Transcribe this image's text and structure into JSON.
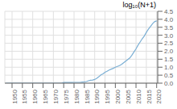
{
  "chart_data": {
    "type": "line",
    "title": "log₁₀(N+1)",
    "x": [
      1947,
      1948,
      1949,
      1950,
      1951,
      1952,
      1953,
      1954,
      1955,
      1956,
      1957,
      1958,
      1959,
      1960,
      1961,
      1962,
      1963,
      1964,
      1965,
      1966,
      1967,
      1968,
      1969,
      1970,
      1971,
      1972,
      1973,
      1974,
      1975,
      1976,
      1977,
      1978,
      1979,
      1980,
      1981,
      1982,
      1983,
      1984,
      1985,
      1986,
      1987,
      1988,
      1989,
      1990,
      1991,
      1992,
      1993,
      1994,
      1995,
      1996,
      1997,
      1998,
      1999,
      2000,
      2001,
      2002,
      2003,
      2004,
      2005,
      2006,
      2007,
      2008,
      2009,
      2010,
      2011,
      2012,
      2013,
      2014,
      2015,
      2016,
      2017,
      2018,
      2019,
      2020
    ],
    "values": [
      0.0,
      0.0,
      0.0,
      0.0,
      0.0,
      0.0,
      0.0,
      0.0,
      0.0,
      0.0,
      0.0,
      0.0,
      0.0,
      0.0,
      0.0,
      0.0,
      0.0,
      0.0,
      0.0,
      0.0,
      0.0,
      0.0,
      0.0,
      0.0,
      0.0,
      0.0,
      0.0,
      0.0,
      0.04,
      0.04,
      0.04,
      0.04,
      0.04,
      0.05,
      0.05,
      0.05,
      0.05,
      0.07,
      0.08,
      0.1,
      0.15,
      0.18,
      0.2,
      0.23,
      0.3,
      0.4,
      0.52,
      0.58,
      0.68,
      0.75,
      0.82,
      0.88,
      0.93,
      1.0,
      1.05,
      1.1,
      1.18,
      1.28,
      1.38,
      1.48,
      1.58,
      1.75,
      1.95,
      2.15,
      2.38,
      2.58,
      2.78,
      2.95,
      3.18,
      3.38,
      3.55,
      3.72,
      3.85,
      3.9
    ],
    "color": "#7bafd4",
    "xlim": [
      1946.5,
      2020.5
    ],
    "xticks": [
      1950,
      1955,
      1960,
      1965,
      1970,
      1975,
      1980,
      1985,
      1990,
      1995,
      2000,
      2005,
      2010,
      2015,
      2020
    ],
    "ylim": [
      0,
      4.5
    ],
    "yticks": [
      {
        "value": 0,
        "label": "0.0"
      },
      0.5,
      {
        "value": 1,
        "label": "1.0"
      },
      1.5,
      {
        "value": 2,
        "label": "2.0"
      },
      2.5,
      {
        "value": 3,
        "label": "3.0"
      },
      3.5,
      {
        "value": 4,
        "label": "4.0"
      },
      4.5
    ],
    "grid": true
  }
}
